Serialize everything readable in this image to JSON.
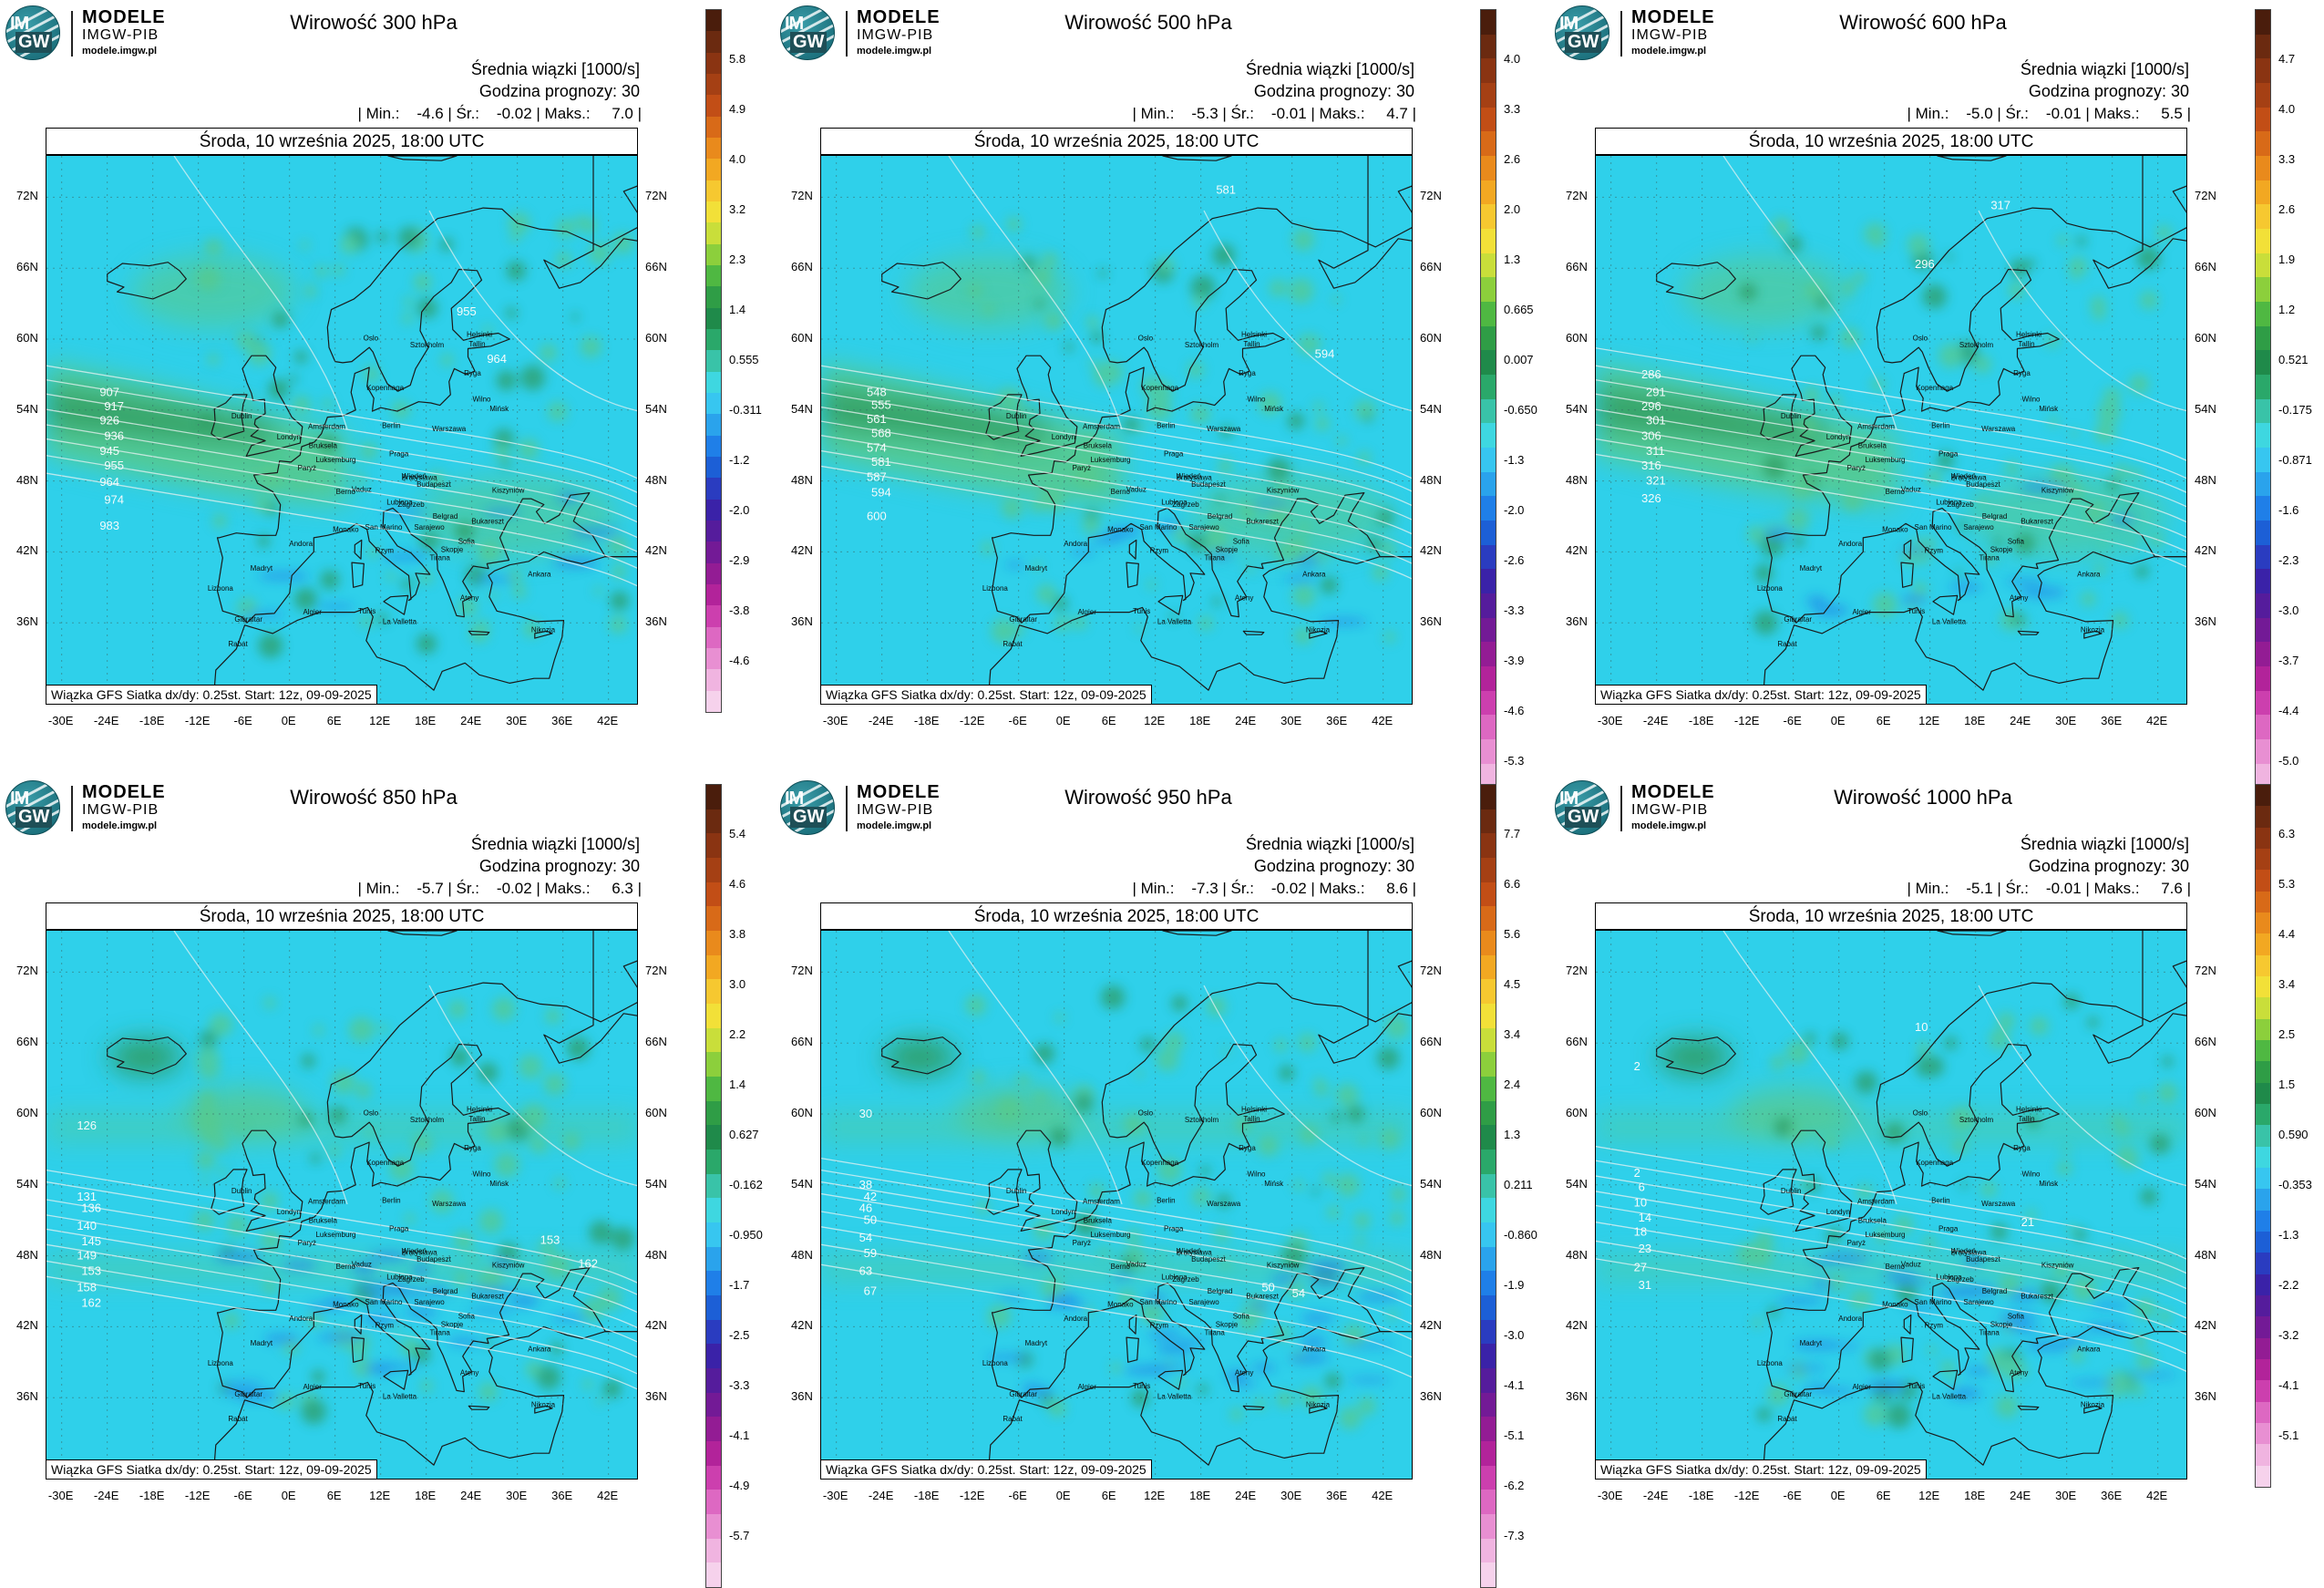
{
  "logo": {
    "im": "IM",
    "gw": "GW",
    "line1": "MODELE",
    "line2": "IMGW-PIB",
    "line3": "modele.imgw.pl"
  },
  "common": {
    "subtitle1": "Średnia wiązki [1000/s]",
    "subtitle2": "Godzina prognozy: 30",
    "date": "Środa, 10 września 2025, 18:00 UTC",
    "info": "Wiązka GFS Siatka dx/dy: 0.25st. Start: 12z, 09-09-2025",
    "lat_labels_left": [
      "72N",
      "66N",
      "60N",
      "54N",
      "48N",
      "42N",
      "36N"
    ],
    "lat_labels_right": [
      "72N",
      "66N",
      "60N",
      "54N",
      "48N",
      "42N",
      "36N"
    ],
    "lon_labels": [
      "-30E",
      "-24E",
      "-18E",
      "-12E",
      "-6E",
      "0E",
      "6E",
      "12E",
      "18E",
      "24E",
      "30E",
      "36E",
      "42E"
    ]
  },
  "colors": {
    "sea": "#2fd0ea",
    "land_green": "#58c98a",
    "dark_green": "#2f9a5e",
    "blue": "#1f7fe8",
    "coast": "#1a1a1a",
    "contour": "#e8f2f2"
  },
  "panels": [
    {
      "title": "Wirowość 300 hPa",
      "stats": "| Min.:    -4.6 | Śr.:    -0.02 | Maks.:     7.0 |",
      "stats_values": {
        "min": -4.6,
        "mean": -0.02,
        "max": 7.0
      },
      "colorbar_ticks": [
        "5.8",
        "4.9",
        "4.0",
        "3.2",
        "2.3",
        "1.4",
        "0.555",
        "-0.311",
        "-1.2",
        "-2.0",
        "-2.9",
        "-3.8",
        "-4.6"
      ],
      "contour_labels": [
        {
          "text": "907"
        },
        {
          "text": "917"
        },
        {
          "text": "926"
        },
        {
          "text": "936"
        },
        {
          "text": "945"
        },
        {
          "text": "955"
        },
        {
          "text": "964"
        },
        {
          "text": "974"
        },
        {
          "text": "983"
        },
        {
          "text": "955"
        },
        {
          "text": "964"
        }
      ]
    },
    {
      "title": "Wirowość 500 hPa",
      "stats": "| Min.:    -5.3 | Śr.:    -0.01 | Maks.:     4.7 |",
      "stats_values": {
        "min": -5.3,
        "mean": -0.01,
        "max": 4.7
      },
      "colorbar_ticks": [
        "4.0",
        "3.3",
        "2.6",
        "2.0",
        "1.3",
        "0.665",
        "0.007",
        "-0.650",
        "-1.3",
        "-2.0",
        "-2.6",
        "-3.3",
        "-3.9",
        "-4.6",
        "-5.3"
      ],
      "contour_labels": [
        {
          "text": "548"
        },
        {
          "text": "555"
        },
        {
          "text": "561"
        },
        {
          "text": "568"
        },
        {
          "text": "574"
        },
        {
          "text": "581"
        },
        {
          "text": "587"
        },
        {
          "text": "594"
        },
        {
          "text": "600"
        },
        {
          "text": "581"
        },
        {
          "text": "594"
        }
      ]
    },
    {
      "title": "Wirowość 600 hPa",
      "stats": "| Min.:    -5.0 | Śr.:    -0.01 | Maks.:     5.5 |",
      "stats_values": {
        "min": -5.0,
        "mean": -0.01,
        "max": 5.5
      },
      "colorbar_ticks": [
        "4.7",
        "4.0",
        "3.3",
        "2.6",
        "1.9",
        "1.2",
        "0.521",
        "-0.175",
        "-0.871",
        "-1.6",
        "-2.3",
        "-3.0",
        "-3.7",
        "-4.4",
        "-5.0"
      ],
      "contour_labels": [
        {
          "text": "286"
        },
        {
          "text": "291"
        },
        {
          "text": "296"
        },
        {
          "text": "301"
        },
        {
          "text": "306"
        },
        {
          "text": "311"
        },
        {
          "text": "316"
        },
        {
          "text": "321"
        },
        {
          "text": "326"
        },
        {
          "text": "317"
        },
        {
          "text": "296"
        }
      ]
    },
    {
      "title": "Wirowość 850 hPa",
      "stats": "| Min.:    -5.7 | Śr.:    -0.02 | Maks.:     6.3 |",
      "stats_values": {
        "min": -5.7,
        "mean": -0.02,
        "max": 6.3
      },
      "colorbar_ticks": [
        "5.4",
        "4.6",
        "3.8",
        "3.0",
        "2.2",
        "1.4",
        "0.627",
        "-0.162",
        "-0.950",
        "-1.7",
        "-2.5",
        "-3.3",
        "-4.1",
        "-4.9",
        "-5.7"
      ],
      "contour_labels": [
        {
          "text": "131"
        },
        {
          "text": "136"
        },
        {
          "text": "140"
        },
        {
          "text": "145"
        },
        {
          "text": "149"
        },
        {
          "text": "153"
        },
        {
          "text": "158"
        },
        {
          "text": "162"
        },
        {
          "text": "126"
        },
        {
          "text": "153"
        },
        {
          "text": "162"
        }
      ]
    },
    {
      "title": "Wirowość 950 hPa",
      "stats": "| Min.:    -7.3 | Śr.:    -0.02 | Maks.:     8.6 |",
      "stats_values": {
        "min": -7.3,
        "mean": -0.02,
        "max": 8.6
      },
      "colorbar_ticks": [
        "7.7",
        "6.6",
        "5.6",
        "4.5",
        "3.4",
        "2.4",
        "1.3",
        "0.211",
        "-0.860",
        "-1.9",
        "-3.0",
        "-4.1",
        "-5.1",
        "-6.2",
        "-7.3"
      ],
      "contour_labels": [
        {
          "text": "38"
        },
        {
          "text": "42"
        },
        {
          "text": "46"
        },
        {
          "text": "50"
        },
        {
          "text": "54"
        },
        {
          "text": "59"
        },
        {
          "text": "63"
        },
        {
          "text": "67"
        },
        {
          "text": "30"
        },
        {
          "text": "50"
        },
        {
          "text": "54"
        }
      ]
    },
    {
      "title": "Wirowość 1000 hPa",
      "stats": "| Min.:    -5.1 | Śr.:    -0.01 | Maks.:     7.6 |",
      "stats_values": {
        "min": -5.1,
        "mean": -0.01,
        "max": 7.6
      },
      "colorbar_ticks": [
        "6.3",
        "5.3",
        "4.4",
        "3.4",
        "2.5",
        "1.5",
        "0.590",
        "-0.353",
        "-1.3",
        "-2.2",
        "-3.2",
        "-4.1",
        "-5.1"
      ],
      "contour_labels": [
        {
          "text": "2"
        },
        {
          "text": "6"
        },
        {
          "text": "10"
        },
        {
          "text": "14"
        },
        {
          "text": "18"
        },
        {
          "text": "23"
        },
        {
          "text": "27"
        },
        {
          "text": "31"
        },
        {
          "text": "2"
        },
        {
          "text": "10"
        },
        {
          "text": "21"
        }
      ]
    }
  ],
  "cities": [
    "Oslo",
    "Sztokholm",
    "Helsinki",
    "Tallin",
    "Ryga",
    "Wilno",
    "Mińsk",
    "Kopenhaga",
    "Dublin",
    "Londyn",
    "Amsterdam",
    "Bruksela",
    "Berlin",
    "Warszawa",
    "Paryż",
    "Luksemburg",
    "Praga",
    "Wiedeń",
    "Bratysława",
    "Kiszyniów",
    "Berno",
    "Vaduz",
    "Budapeszt",
    "Zagrzeb",
    "Lublana",
    "Belgrad",
    "Bukareszt",
    "Sarajewo",
    "Monako",
    "San Marino",
    "Andora",
    "Rzym",
    "Sofia",
    "Skopje",
    "Tirana",
    "Ankara",
    "Madryt",
    "Lizbona",
    "Gibraltar",
    "Algier",
    "Tunis",
    "La Valletta",
    "Ateny",
    "Rabat",
    "Nikozja"
  ]
}
